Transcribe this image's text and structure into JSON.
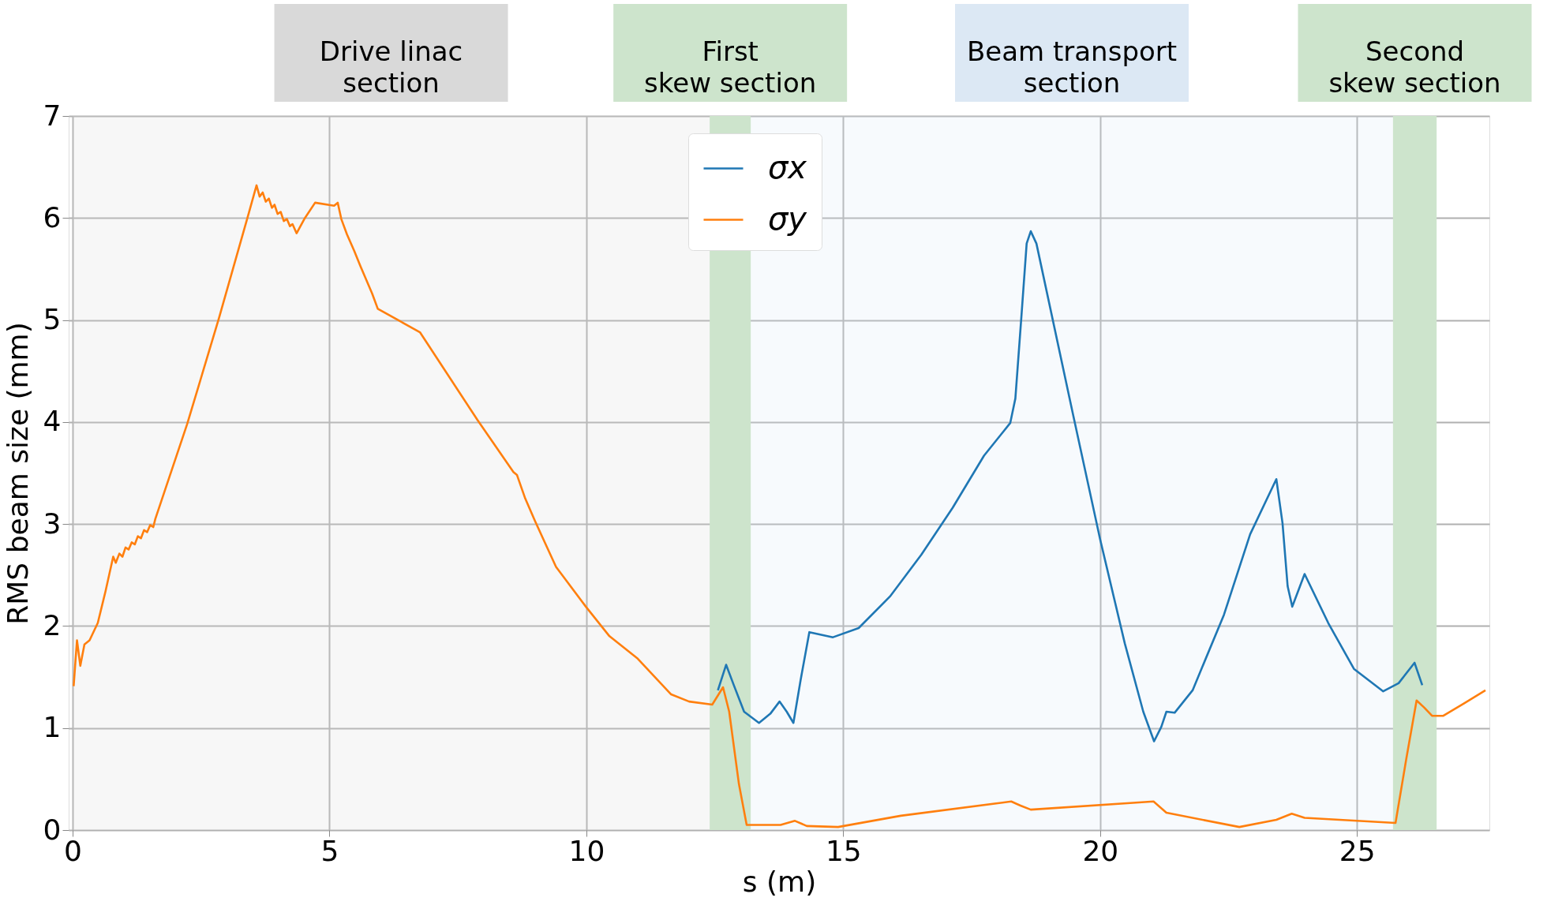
{
  "chart_data": {
    "type": "line",
    "xlabel": "s (m)",
    "ylabel": "RMS beam size (mm)",
    "xlim": [
      0,
      27.5
    ],
    "ylim": [
      0,
      7
    ],
    "xticks": [
      0,
      5,
      10,
      15,
      20,
      25
    ],
    "yticks": [
      0,
      1,
      2,
      3,
      4,
      5,
      6,
      7
    ],
    "grid": true,
    "legend": "top",
    "line_style": "solid",
    "marker": "none",
    "bands": [
      {
        "axis": "x",
        "from": 0,
        "to": 12.4,
        "label": "Drive linac\nsection",
        "color": "#d9d9d9"
      },
      {
        "axis": "x",
        "from": 12.4,
        "to": 13.2,
        "label": "First\nskew section",
        "color": "#cde4cc"
      },
      {
        "axis": "x",
        "from": 13.2,
        "to": 25.7,
        "label": "Beam transport\nsection",
        "color": "#dce8f4"
      },
      {
        "axis": "x",
        "from": 25.7,
        "to": 26.55,
        "label": "Second\nskew section",
        "color": "#cde4cc"
      }
    ],
    "series": [
      {
        "name": "σx",
        "color": "#1f77b4",
        "x": [
          12.56,
          12.72,
          12.87,
          13.07,
          13.36,
          13.58,
          13.76,
          13.9,
          14.03,
          14.17,
          14.34,
          14.8,
          15.3,
          15.91,
          16.52,
          17.13,
          17.74,
          18.25,
          18.35,
          18.47,
          18.57,
          18.65,
          18.76,
          19.47,
          20.0,
          20.48,
          20.84,
          21.05,
          21.19,
          21.29,
          21.45,
          21.8,
          22.41,
          22.92,
          23.43,
          23.55,
          23.65,
          23.74,
          23.98,
          24.44,
          24.94,
          25.51,
          25.81,
          26.12,
          26.27
        ],
        "values": [
          1.37,
          1.62,
          1.42,
          1.16,
          1.05,
          1.14,
          1.26,
          1.16,
          1.05,
          1.47,
          1.94,
          1.89,
          1.98,
          2.29,
          2.7,
          3.16,
          3.67,
          3.99,
          4.23,
          5.05,
          5.75,
          5.87,
          5.75,
          4.08,
          2.85,
          1.83,
          1.16,
          0.87,
          1.01,
          1.16,
          1.15,
          1.37,
          2.11,
          2.9,
          3.44,
          3.01,
          2.39,
          2.19,
          2.51,
          2.03,
          1.58,
          1.36,
          1.44,
          1.64,
          1.42
        ]
      },
      {
        "name": "σy",
        "color": "#ff7f0e",
        "x": [
          0.02,
          0.085,
          0.15,
          0.23,
          0.33,
          0.49,
          0.64,
          0.79,
          0.84,
          0.91,
          0.97,
          1.03,
          1.09,
          1.15,
          1.21,
          1.27,
          1.33,
          1.39,
          1.45,
          1.51,
          1.57,
          1.61,
          2.23,
          2.85,
          3.43,
          3.58,
          3.64,
          3.7,
          3.76,
          3.82,
          3.88,
          3.93,
          3.99,
          4.05,
          4.11,
          4.17,
          4.23,
          4.28,
          4.36,
          4.51,
          4.72,
          5.09,
          5.16,
          5.23,
          5.34,
          5.48,
          5.6,
          5.71,
          5.83,
          5.94,
          6.76,
          7.88,
          8.58,
          8.65,
          8.81,
          9.0,
          9.2,
          9.41,
          9.99,
          10.45,
          11.0,
          11.65,
          12.0,
          12.45,
          12.66,
          12.78,
          12.97,
          13.12,
          13.78,
          14.06,
          14.29,
          14.9,
          16.12,
          18.27,
          18.45,
          18.65,
          21.04,
          21.29,
          22.71,
          23.43,
          23.73,
          23.98,
          25.75,
          25.96,
          26.16,
          26.31,
          26.46,
          26.68,
          27.08,
          27.5
        ],
        "values": [
          1.41,
          1.86,
          1.61,
          1.82,
          1.86,
          2.03,
          2.34,
          2.68,
          2.62,
          2.71,
          2.68,
          2.77,
          2.75,
          2.82,
          2.8,
          2.88,
          2.86,
          2.94,
          2.92,
          2.99,
          2.97,
          3.05,
          3.98,
          5.02,
          6.05,
          6.32,
          6.21,
          6.25,
          6.16,
          6.19,
          6.1,
          6.13,
          6.04,
          6.06,
          5.97,
          5.99,
          5.92,
          5.94,
          5.85,
          5.99,
          6.15,
          6.12,
          6.15,
          5.99,
          5.84,
          5.68,
          5.53,
          5.4,
          5.26,
          5.11,
          4.88,
          4.02,
          3.51,
          3.48,
          3.25,
          3.03,
          2.81,
          2.58,
          2.19,
          1.9,
          1.68,
          1.33,
          1.26,
          1.23,
          1.4,
          1.16,
          0.45,
          0.05,
          0.05,
          0.09,
          0.04,
          0.03,
          0.14,
          0.28,
          0.24,
          0.2,
          0.28,
          0.17,
          0.03,
          0.1,
          0.16,
          0.12,
          0.07,
          0.7,
          1.27,
          1.2,
          1.12,
          1.12,
          1.24,
          1.37
        ]
      }
    ]
  }
}
